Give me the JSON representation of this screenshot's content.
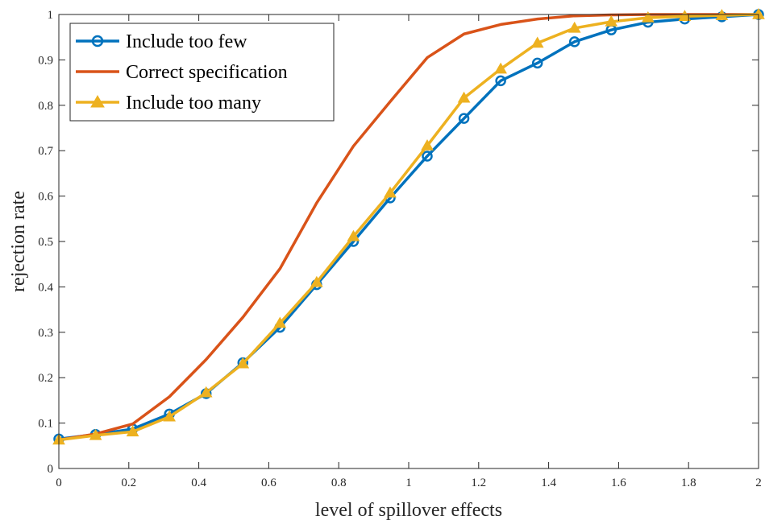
{
  "chart_data": {
    "type": "line",
    "xlabel": "level of spillover effects",
    "ylabel": "rejection rate",
    "xlim": [
      0,
      2
    ],
    "ylim": [
      0,
      1
    ],
    "xticks": [
      "0",
      "0.2",
      "0.4",
      "0.6",
      "0.8",
      "1",
      "1.2",
      "1.4",
      "1.6",
      "1.8",
      "2"
    ],
    "yticks": [
      "0",
      "0.1",
      "0.2",
      "0.3",
      "0.4",
      "0.5",
      "0.6",
      "0.7",
      "0.8",
      "0.9",
      "1"
    ],
    "grid": false,
    "legend_position": "top-left",
    "x": [
      0,
      0.105,
      0.211,
      0.316,
      0.421,
      0.526,
      0.632,
      0.737,
      0.842,
      0.947,
      1.053,
      1.158,
      1.263,
      1.368,
      1.474,
      1.579,
      1.684,
      1.789,
      1.895,
      2.0
    ],
    "series": [
      {
        "name": "Include too few",
        "color": "#0072BD",
        "marker": "circle",
        "values": [
          0.065,
          0.075,
          0.087,
          0.12,
          0.165,
          0.233,
          0.311,
          0.405,
          0.5,
          0.596,
          0.688,
          0.771,
          0.854,
          0.893,
          0.94,
          0.966,
          0.983,
          0.99,
          0.995,
          1.0
        ]
      },
      {
        "name": "Correct specification",
        "color": "#D95319",
        "marker": "none",
        "values": [
          0.063,
          0.076,
          0.098,
          0.158,
          0.24,
          0.333,
          0.44,
          0.585,
          0.71,
          0.808,
          0.905,
          0.957,
          0.978,
          0.99,
          0.997,
          0.999,
          1.0,
          1.0,
          1.0,
          1.0
        ]
      },
      {
        "name": "Include too many",
        "color": "#EDB120",
        "marker": "triangle",
        "values": [
          0.063,
          0.073,
          0.081,
          0.114,
          0.167,
          0.231,
          0.32,
          0.41,
          0.511,
          0.607,
          0.711,
          0.816,
          0.88,
          0.937,
          0.97,
          0.984,
          0.993,
          0.996,
          0.998,
          1.0
        ]
      }
    ]
  }
}
